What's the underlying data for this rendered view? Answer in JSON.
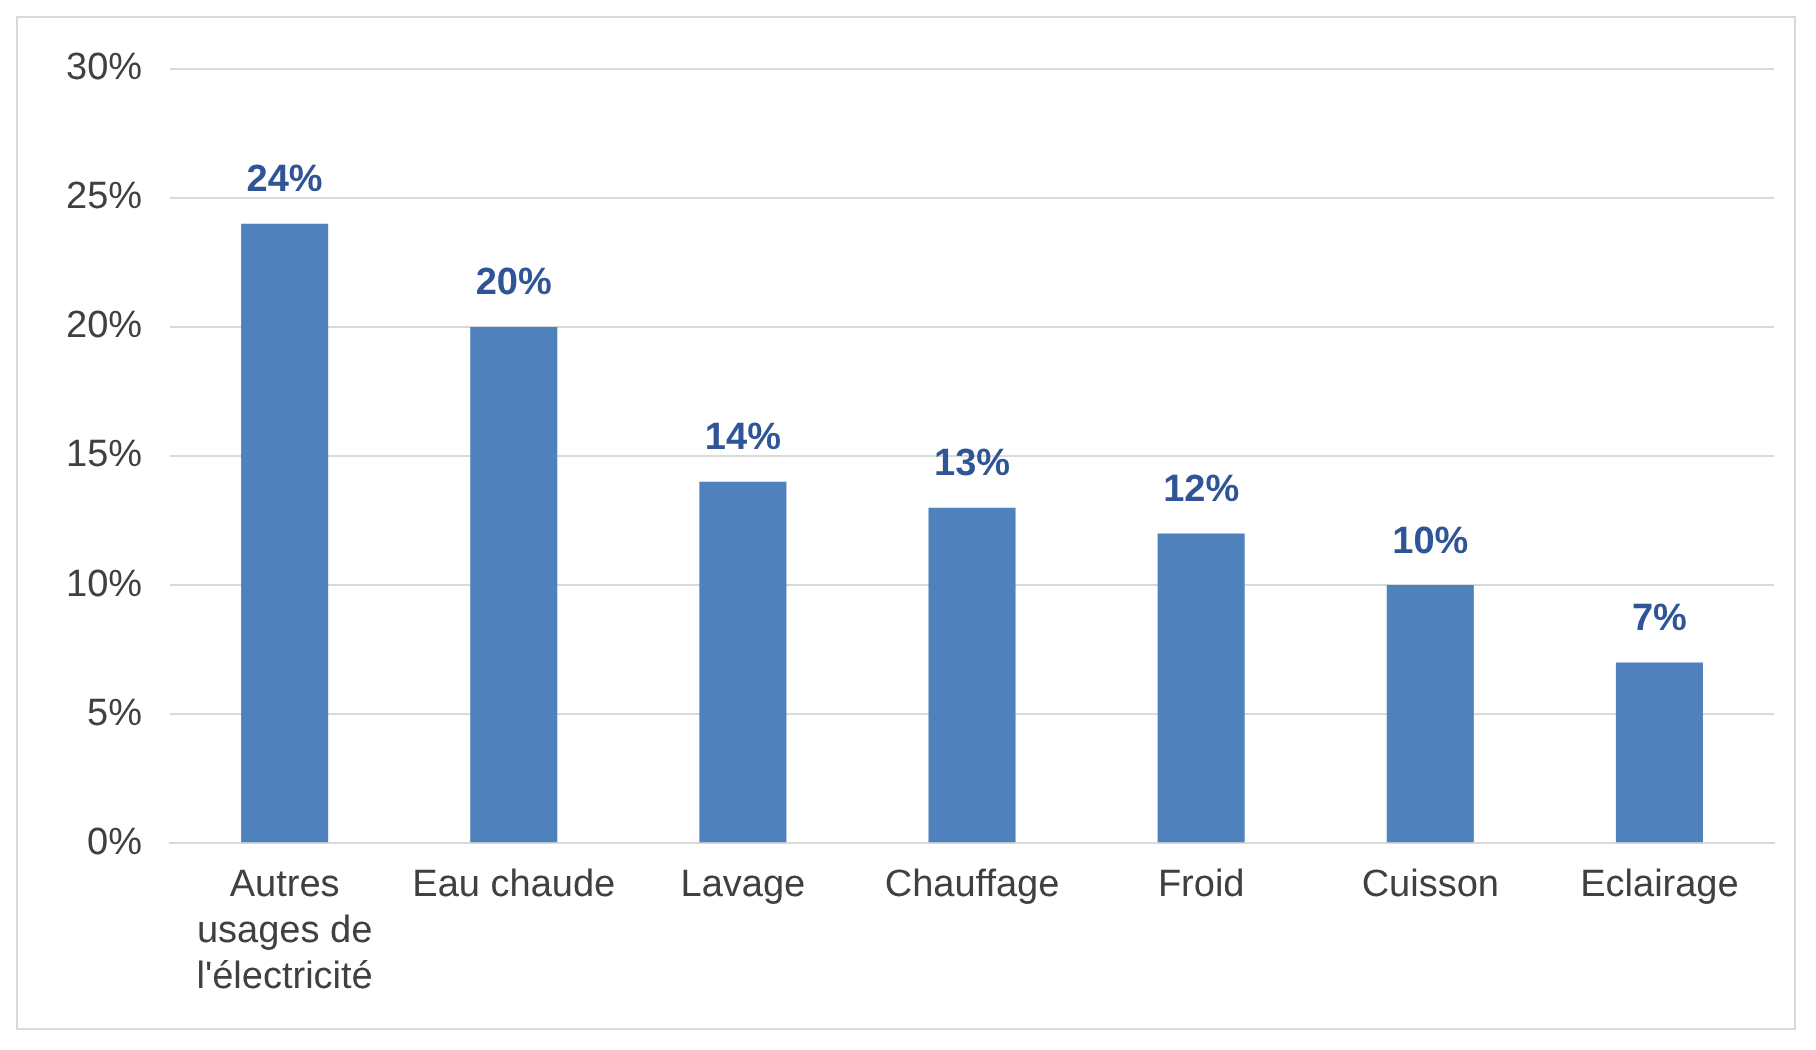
{
  "chart_data": {
    "type": "bar",
    "categories": [
      "Autres usages de l'électricité",
      "Eau chaude",
      "Lavage",
      "Chauffage",
      "Froid",
      "Cuisson",
      "Eclairage"
    ],
    "values": [
      24,
      20,
      14,
      13,
      12,
      10,
      7
    ],
    "value_labels": [
      "24%",
      "20%",
      "14%",
      "13%",
      "12%",
      "10%",
      "7%"
    ],
    "color": "#4f81bd",
    "ylim": [
      0,
      30
    ],
    "yticks": [
      {
        "value": 0,
        "label": "0%"
      },
      {
        "value": 5,
        "label": "5%"
      },
      {
        "value": 10,
        "label": "10%"
      },
      {
        "value": 15,
        "label": "15%"
      },
      {
        "value": 20,
        "label": "20%"
      },
      {
        "value": 25,
        "label": "25%"
      },
      {
        "value": 30,
        "label": "30%"
      }
    ],
    "grid": "y",
    "legend": false
  }
}
